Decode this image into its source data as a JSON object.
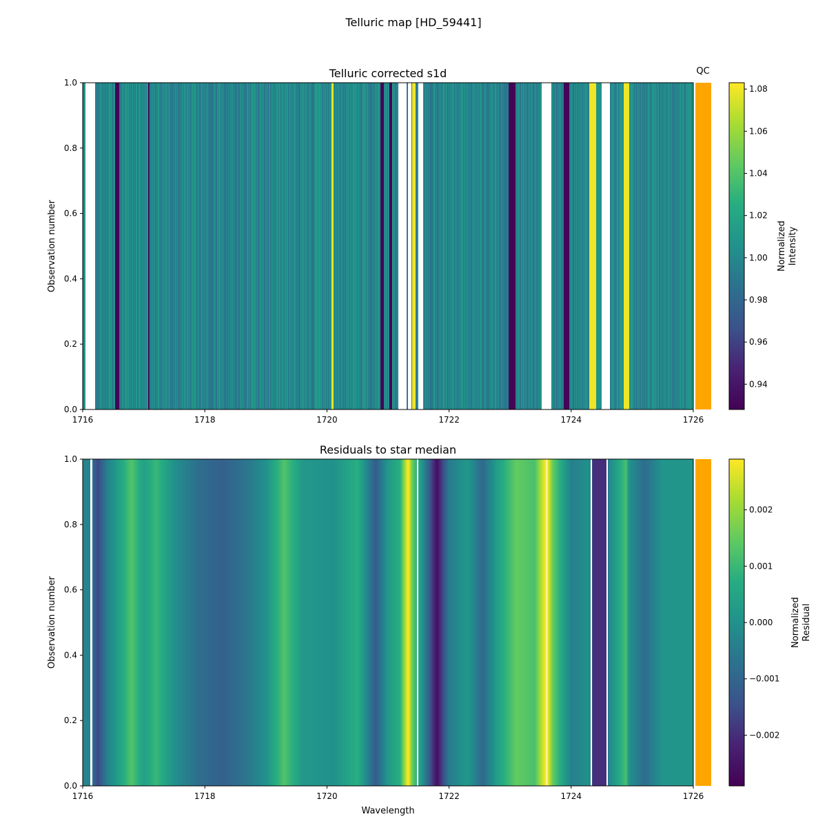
{
  "figure_title": "Telluric map [HD_59441]",
  "qc_label": "QC",
  "qc_color": "#ffa500",
  "colormap": "viridis",
  "chart_data": [
    {
      "type": "heatmap",
      "title": "Telluric corrected s1d",
      "xlabel": "",
      "ylabel": "Observation number",
      "xlim": [
        1716,
        1726
      ],
      "ylim": [
        0,
        1
      ],
      "xticks": [
        "1716",
        "1718",
        "1720",
        "1722",
        "1724",
        "1726"
      ],
      "yticks": [
        "0.0",
        "0.2",
        "0.4",
        "0.6",
        "0.8",
        "1.0"
      ],
      "colorbar": {
        "label": "Normalized\nIntensity",
        "label_lines": [
          "Normalized",
          "Intensity"
        ],
        "range": [
          0.928,
          1.083
        ],
        "ticks": [
          "0.94",
          "0.96",
          "0.98",
          "1.00",
          "1.02",
          "1.04",
          "1.06",
          "1.08"
        ]
      },
      "baseline": 1.0,
      "features": [
        {
          "wl": [
            1716.05,
            1716.2
          ],
          "value": 1.09
        },
        {
          "wl": [
            1716.53,
            1716.6
          ],
          "value": 0.93
        },
        {
          "wl": [
            1717.07,
            1717.1
          ],
          "value": 0.93
        },
        {
          "wl": [
            1720.08,
            1720.11
          ],
          "value": 1.08
        },
        {
          "wl": [
            1720.88,
            1720.93
          ],
          "value": 0.93
        },
        {
          "wl": [
            1721.02,
            1721.07
          ],
          "value": 0.93
        },
        {
          "wl": [
            1721.17,
            1721.3
          ],
          "value": 1.09
        },
        {
          "wl": [
            1721.33,
            1721.38
          ],
          "value": 1.1
        },
        {
          "wl": [
            1721.4,
            1721.45
          ],
          "value": 1.08
        },
        {
          "wl": [
            1721.5,
            1721.58
          ],
          "value": 1.1
        },
        {
          "wl": [
            1722.98,
            1723.09
          ],
          "value": 0.93
        },
        {
          "wl": [
            1723.52,
            1723.68
          ],
          "value": 1.09
        },
        {
          "wl": [
            1723.88,
            1723.97
          ],
          "value": 0.93
        },
        {
          "wl": [
            1724.3,
            1724.41
          ],
          "value": 1.08
        },
        {
          "wl": [
            1724.5,
            1724.63
          ],
          "value": 1.09
        },
        {
          "wl": [
            1724.86,
            1724.95
          ],
          "value": 1.08
        }
      ]
    },
    {
      "type": "heatmap",
      "title": "Residuals to star median",
      "xlabel": "Wavelength",
      "ylabel": "Observation number",
      "xlim": [
        1716,
        1726
      ],
      "ylim": [
        0,
        1
      ],
      "xticks": [
        "1716",
        "1718",
        "1720",
        "1722",
        "1724",
        "1726"
      ],
      "yticks": [
        "0.0",
        "0.2",
        "0.4",
        "0.6",
        "0.8",
        "1.0"
      ],
      "colorbar": {
        "label": "Normalized\nResidual",
        "label_lines": [
          "Normalized",
          "Residual"
        ],
        "range": [
          -0.0029,
          0.0029
        ],
        "ticks": [
          "−0.002",
          "−0.001",
          "0.000",
          "0.001",
          "0.002"
        ]
      },
      "profile": [
        [
          1716.0,
          -0.0003
        ],
        [
          1716.1,
          -0.0003
        ],
        [
          1716.25,
          -0.0016
        ],
        [
          1716.4,
          -0.0004
        ],
        [
          1716.8,
          0.0013
        ],
        [
          1717.0,
          0.0004
        ],
        [
          1717.2,
          0.001
        ],
        [
          1717.5,
          0.0
        ],
        [
          1717.9,
          -0.0008
        ],
        [
          1718.3,
          -0.0011
        ],
        [
          1718.7,
          -0.0006
        ],
        [
          1719.0,
          0.0
        ],
        [
          1719.3,
          0.0013
        ],
        [
          1719.6,
          0.0002
        ],
        [
          1720.1,
          0.0
        ],
        [
          1720.5,
          0.0008
        ],
        [
          1720.8,
          -0.0012
        ],
        [
          1721.0,
          0.0002
        ],
        [
          1721.2,
          0.0008
        ],
        [
          1721.27,
          0.002
        ],
        [
          1721.33,
          0.003
        ],
        [
          1721.4,
          0.0015
        ],
        [
          1721.55,
          0.0002
        ],
        [
          1721.8,
          -0.0026
        ],
        [
          1722.0,
          -0.0005
        ],
        [
          1722.3,
          0.0002
        ],
        [
          1722.55,
          -0.0009
        ],
        [
          1722.8,
          0.0004
        ],
        [
          1723.1,
          0.0015
        ],
        [
          1723.4,
          0.0012
        ],
        [
          1723.6,
          0.0031
        ],
        [
          1723.7,
          0.0015
        ],
        [
          1724.0,
          -0.0004
        ],
        [
          1724.3,
          0.0
        ],
        [
          1724.36,
          -0.002
        ],
        [
          1724.57,
          -0.002
        ],
        [
          1724.62,
          -0.0002
        ],
        [
          1724.9,
          0.0012
        ],
        [
          1724.95,
          0.0
        ],
        [
          1725.2,
          -0.0008
        ],
        [
          1725.5,
          0.0001
        ],
        [
          1726.0,
          0.0001
        ]
      ],
      "gaps": [
        [
          1716.12,
          1716.16
        ],
        [
          1721.47,
          1721.5
        ],
        [
          1724.32,
          1724.34
        ],
        [
          1724.58,
          1724.6
        ]
      ]
    }
  ]
}
